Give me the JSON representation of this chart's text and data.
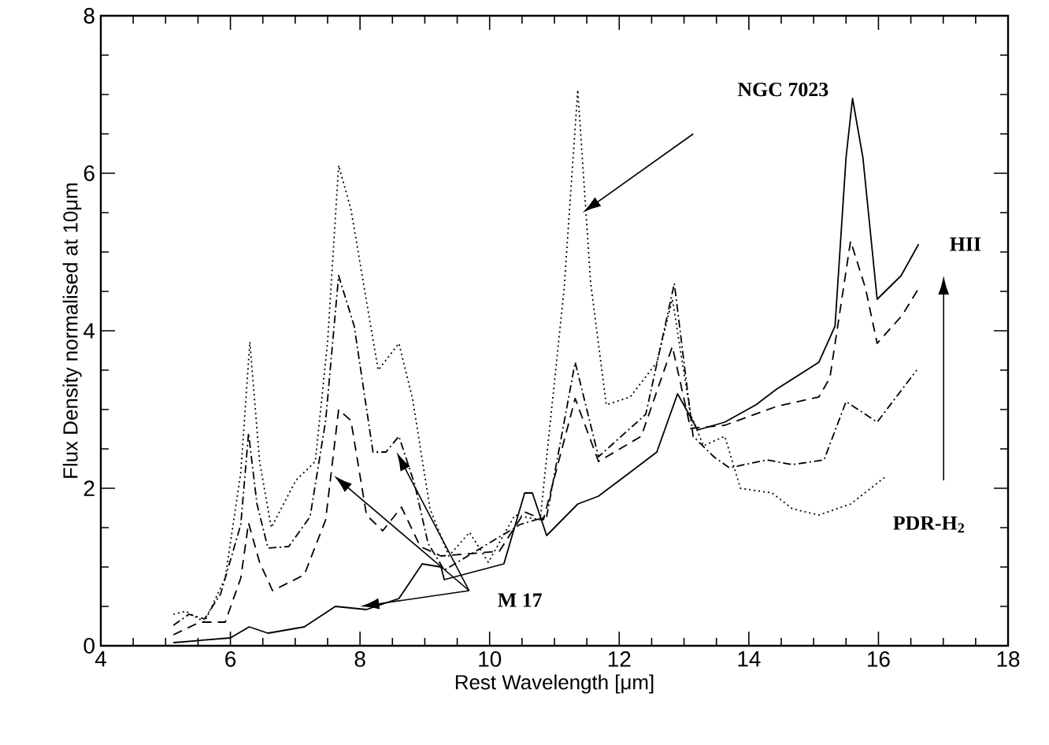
{
  "chart_data": {
    "type": "line",
    "xlabel": "Rest Wavelength [μm]",
    "ylabel": "Flux Density normalised at 10μm",
    "xlim": [
      4,
      18
    ],
    "ylim": [
      0,
      8
    ],
    "xticks": [
      4,
      6,
      8,
      10,
      12,
      14,
      16,
      18
    ],
    "yticks": [
      0,
      2,
      4,
      6,
      8
    ],
    "grid": false,
    "series": [
      {
        "color": "#000000",
        "line_style": "solid",
        "x": [
          5.12,
          6.0,
          6.29,
          6.58,
          7.14,
          7.62,
          8.1,
          8.6,
          8.96,
          9.25,
          9.3,
          10.22,
          10.54,
          10.66,
          10.88,
          11.36,
          11.68,
          12.1,
          12.58,
          12.9,
          13.21,
          13.63,
          14.11,
          14.43,
          15.08,
          15.33,
          15.5,
          15.6,
          15.76,
          15.98,
          16.35,
          16.62
        ],
        "values": [
          0.04,
          0.1,
          0.24,
          0.16,
          0.24,
          0.5,
          0.46,
          0.6,
          1.04,
          1.0,
          0.84,
          1.04,
          1.94,
          1.94,
          1.4,
          1.8,
          1.9,
          2.16,
          2.46,
          3.2,
          2.74,
          2.84,
          3.06,
          3.26,
          3.6,
          4.06,
          6.2,
          6.95,
          6.2,
          4.4,
          4.7,
          5.1
        ]
      },
      {
        "color": "#000000",
        "line_style": "dashed",
        "x": [
          5.12,
          5.53,
          5.92,
          6.16,
          6.28,
          6.45,
          6.65,
          7.14,
          7.47,
          7.67,
          7.86,
          8.1,
          8.35,
          8.64,
          8.93,
          9.25,
          10.15,
          10.54,
          10.83,
          11.02,
          11.32,
          11.68,
          12.34,
          12.82,
          13.1,
          13.63,
          14.43,
          15.08,
          15.25,
          15.57,
          15.8,
          15.98,
          16.37,
          16.62
        ],
        "values": [
          0.14,
          0.3,
          0.3,
          0.86,
          1.56,
          1.06,
          0.7,
          0.9,
          1.6,
          3.0,
          2.86,
          1.66,
          1.46,
          1.76,
          1.26,
          1.14,
          1.2,
          1.7,
          1.6,
          2.2,
          3.14,
          2.34,
          2.66,
          3.8,
          2.76,
          2.8,
          3.04,
          3.16,
          3.4,
          5.14,
          4.54,
          3.84,
          4.2,
          4.54
        ]
      },
      {
        "color": "#000000",
        "line_style": "dashdot",
        "x": [
          5.12,
          5.36,
          5.6,
          5.85,
          6.16,
          6.28,
          6.41,
          6.58,
          6.9,
          7.23,
          7.47,
          7.67,
          7.91,
          8.2,
          8.4,
          8.6,
          8.84,
          9.05,
          9.3,
          10.47,
          10.88,
          11.32,
          11.68,
          12.41,
          12.85,
          13.14,
          13.46,
          13.7,
          14.28,
          14.67,
          15.16,
          15.5,
          15.98,
          16.59
        ],
        "values": [
          0.26,
          0.4,
          0.34,
          0.66,
          1.54,
          2.7,
          1.8,
          1.24,
          1.26,
          1.64,
          2.86,
          4.7,
          4.06,
          2.46,
          2.46,
          2.66,
          2.06,
          1.3,
          0.96,
          1.54,
          1.64,
          3.6,
          2.4,
          2.94,
          4.6,
          2.66,
          2.4,
          2.26,
          2.36,
          2.3,
          2.36,
          3.1,
          2.84,
          3.5
        ]
      },
      {
        "color": "#000000",
        "line_style": "dotted",
        "x": [
          5.12,
          5.31,
          5.6,
          5.92,
          6.16,
          6.3,
          6.45,
          6.63,
          7.01,
          7.31,
          7.5,
          7.67,
          7.86,
          8.28,
          8.6,
          8.81,
          9.08,
          9.37,
          9.69,
          9.98,
          10.39,
          10.78,
          11.15,
          11.36,
          11.56,
          11.8,
          12.17,
          12.58,
          12.82,
          13.1,
          13.3,
          13.63,
          13.87,
          14.36,
          14.67,
          15.08,
          15.57,
          16.13
        ],
        "values": [
          0.4,
          0.44,
          0.3,
          0.86,
          2.2,
          3.86,
          2.34,
          1.5,
          2.1,
          2.34,
          3.86,
          6.1,
          5.54,
          3.5,
          3.84,
          3.14,
          1.74,
          1.14,
          1.44,
          1.06,
          1.66,
          1.6,
          4.54,
          7.06,
          4.6,
          3.06,
          3.16,
          3.6,
          4.4,
          2.94,
          2.54,
          2.66,
          2.0,
          1.94,
          1.74,
          1.66,
          1.8,
          2.16
        ]
      }
    ],
    "annotations": [
      "NGC 7023",
      "HII",
      "M 17",
      "PDR-H$_{2}$"
    ]
  }
}
